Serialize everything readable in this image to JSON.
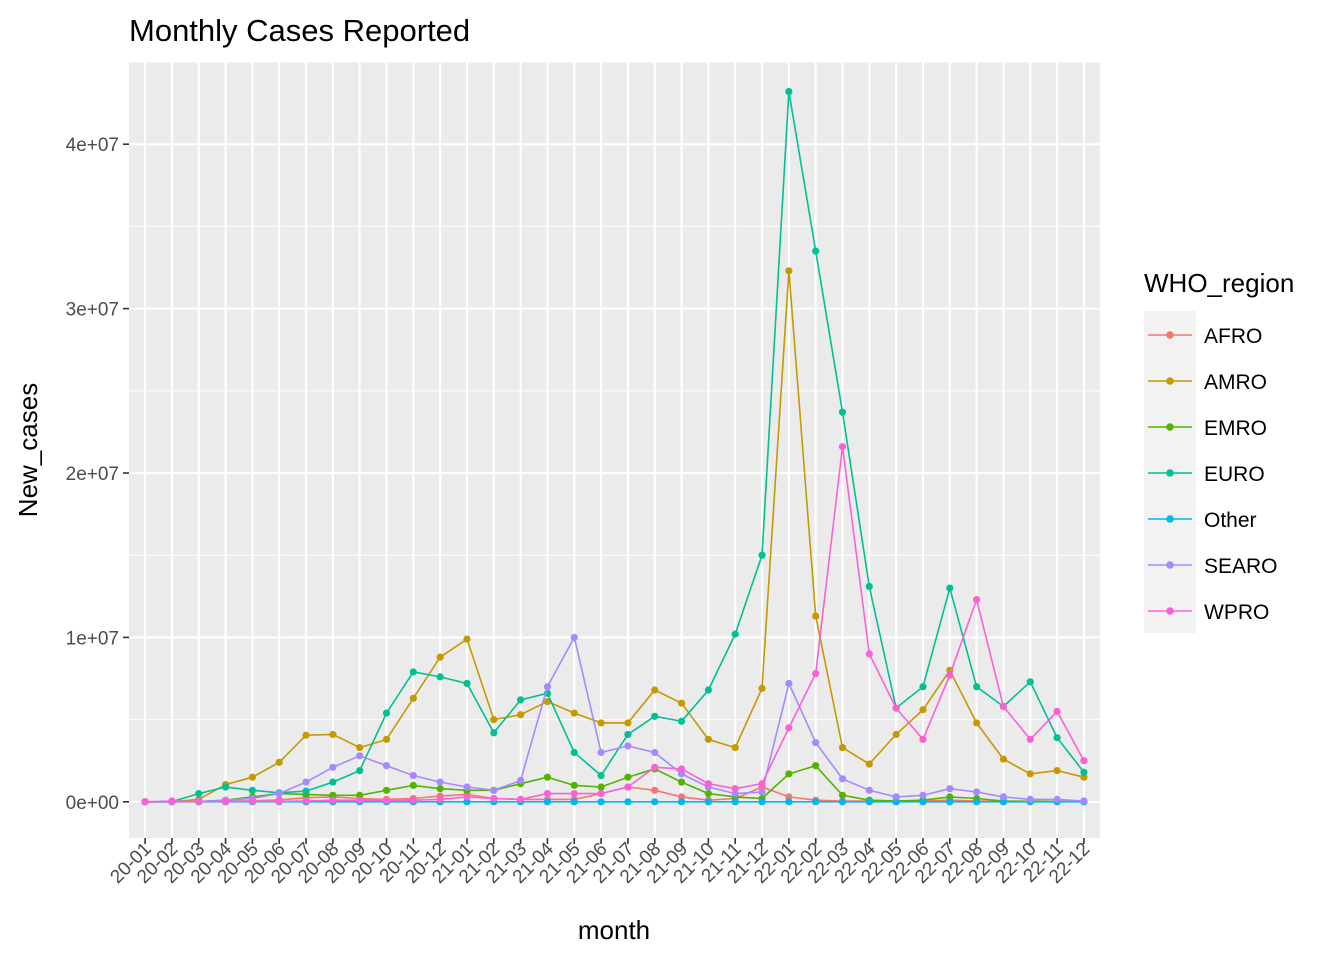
{
  "chart_data": {
    "type": "line",
    "title": "Monthly Cases Reported",
    "xlabel": "month",
    "ylabel": "New_cases",
    "categories": [
      "20-01",
      "20-02",
      "20-03",
      "20-04",
      "20-05",
      "20-06",
      "20-07",
      "20-08",
      "20-09",
      "20-10",
      "20-11",
      "20-12",
      "21-01",
      "21-02",
      "21-03",
      "21-04",
      "21-05",
      "21-06",
      "21-07",
      "21-08",
      "21-09",
      "21-10",
      "21-11",
      "21-12",
      "22-01",
      "22-02",
      "22-03",
      "22-04",
      "22-05",
      "22-06",
      "22-07",
      "22-08",
      "22-09",
      "22-10",
      "22-11",
      "22-12"
    ],
    "ylim": [
      -2200000,
      45000000
    ],
    "y_ticks": [
      0,
      10000000,
      20000000,
      30000000,
      40000000
    ],
    "y_tick_labels": [
      "0e+00",
      "1e+07",
      "2e+07",
      "3e+07",
      "4e+07"
    ],
    "legend_title": "WHO_region",
    "legend_position": "right",
    "grid": true,
    "series": [
      {
        "name": "AFRO",
        "color": "#F8766D",
        "values": [
          0,
          1000,
          5000,
          30000,
          60000,
          120000,
          250000,
          300000,
          200000,
          150000,
          200000,
          350000,
          450000,
          200000,
          150000,
          150000,
          150000,
          500000,
          900000,
          700000,
          300000,
          100000,
          200000,
          900000,
          300000,
          100000,
          50000,
          50000,
          50000,
          50000,
          100000,
          50000,
          30000,
          20000,
          10000,
          10000
        ]
      },
      {
        "name": "AMRO",
        "color": "#C49A00",
        "values": [
          0,
          10000,
          150000,
          1050000,
          1500000,
          2400000,
          4050000,
          4100000,
          3300000,
          3800000,
          6300000,
          8800000,
          9900000,
          5000000,
          5300000,
          6100000,
          5400000,
          4800000,
          4800000,
          6800000,
          6000000,
          3800000,
          3300000,
          6900000,
          32300000,
          11300000,
          3300000,
          2300000,
          4100000,
          5600000,
          8000000,
          4800000,
          2600000,
          1700000,
          1900000,
          1500000
        ]
      },
      {
        "name": "EMRO",
        "color": "#53B400",
        "values": [
          0,
          500,
          20000,
          100000,
          300000,
          500000,
          450000,
          400000,
          400000,
          700000,
          1000000,
          800000,
          700000,
          700000,
          1100000,
          1500000,
          1000000,
          900000,
          1500000,
          2000000,
          1200000,
          500000,
          300000,
          200000,
          1700000,
          2200000,
          400000,
          100000,
          50000,
          100000,
          300000,
          200000,
          50000,
          30000,
          20000,
          10000
        ]
      },
      {
        "name": "EURO",
        "color": "#00C094",
        "values": [
          0,
          10000,
          500000,
          900000,
          700000,
          550000,
          650000,
          1200000,
          1900000,
          5400000,
          7900000,
          7600000,
          7200000,
          4200000,
          6200000,
          6600000,
          3000000,
          1600000,
          4100000,
          5200000,
          4900000,
          6800000,
          10200000,
          15000000,
          43200000,
          33500000,
          23700000,
          13100000,
          5700000,
          7000000,
          13000000,
          7000000,
          5800000,
          7300000,
          3900000,
          1800000
        ]
      },
      {
        "name": "Other",
        "color": "#00B6EB",
        "values": [
          0,
          0,
          0,
          0,
          0,
          0,
          0,
          0,
          0,
          0,
          0,
          0,
          0,
          0,
          0,
          0,
          0,
          0,
          0,
          0,
          0,
          0,
          0,
          0,
          0,
          0,
          0,
          0,
          0,
          0,
          0,
          0,
          0,
          0,
          0,
          0
        ]
      },
      {
        "name": "SEARO",
        "color": "#A58AFF",
        "values": [
          0,
          500,
          10000,
          100000,
          200000,
          500000,
          1200000,
          2100000,
          2800000,
          2200000,
          1600000,
          1200000,
          900000,
          700000,
          1300000,
          7000000,
          10000000,
          3000000,
          3400000,
          3000000,
          1700000,
          900000,
          500000,
          600000,
          7200000,
          3600000,
          1400000,
          700000,
          300000,
          400000,
          800000,
          600000,
          300000,
          150000,
          150000,
          50000
        ]
      },
      {
        "name": "WPRO",
        "color": "#FB61D7",
        "values": [
          0,
          50000,
          20000,
          30000,
          30000,
          30000,
          50000,
          100000,
          100000,
          80000,
          100000,
          150000,
          300000,
          200000,
          150000,
          500000,
          500000,
          500000,
          900000,
          2100000,
          2000000,
          1100000,
          800000,
          1100000,
          4500000,
          7800000,
          21600000,
          9000000,
          5700000,
          3800000,
          7700000,
          12300000,
          5800000,
          3800000,
          5500000,
          2500000
        ]
      }
    ]
  }
}
